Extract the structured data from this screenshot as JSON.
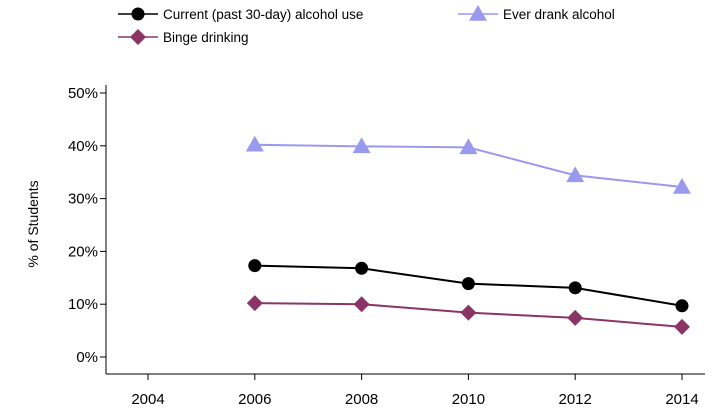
{
  "chart_data": {
    "type": "line",
    "title": "",
    "xlabel": "",
    "ylabel": "% of Students",
    "x": [
      2004,
      2006,
      2008,
      2010,
      2012,
      2014
    ],
    "x_ticks": [
      "2004",
      "2006",
      "2008",
      "2010",
      "2012",
      "2014"
    ],
    "y_ticks": [
      "0%",
      "10%",
      "20%",
      "30%",
      "40%",
      "50%"
    ],
    "xlim": [
      2004,
      2014
    ],
    "ylim": [
      0,
      50
    ],
    "grid": false,
    "legend_position": "top",
    "series": [
      {
        "name": "Current (past 30-day) alcohol use",
        "color": "#000000",
        "marker": "circle",
        "x": [
          2006,
          2008,
          2010,
          2012,
          2014
        ],
        "values": [
          17.3,
          16.8,
          13.9,
          13.1,
          9.7
        ]
      },
      {
        "name": "Ever drank alcohol",
        "color": "#9999ee",
        "marker": "triangle",
        "x": [
          2006,
          2008,
          2010,
          2012,
          2014
        ],
        "values": [
          40.2,
          39.9,
          39.7,
          34.4,
          32.2
        ]
      },
      {
        "name": "Binge drinking",
        "color": "#8b3566",
        "marker": "diamond",
        "x": [
          2006,
          2008,
          2010,
          2012,
          2014
        ],
        "values": [
          10.2,
          10.0,
          8.4,
          7.4,
          5.7
        ]
      }
    ]
  }
}
